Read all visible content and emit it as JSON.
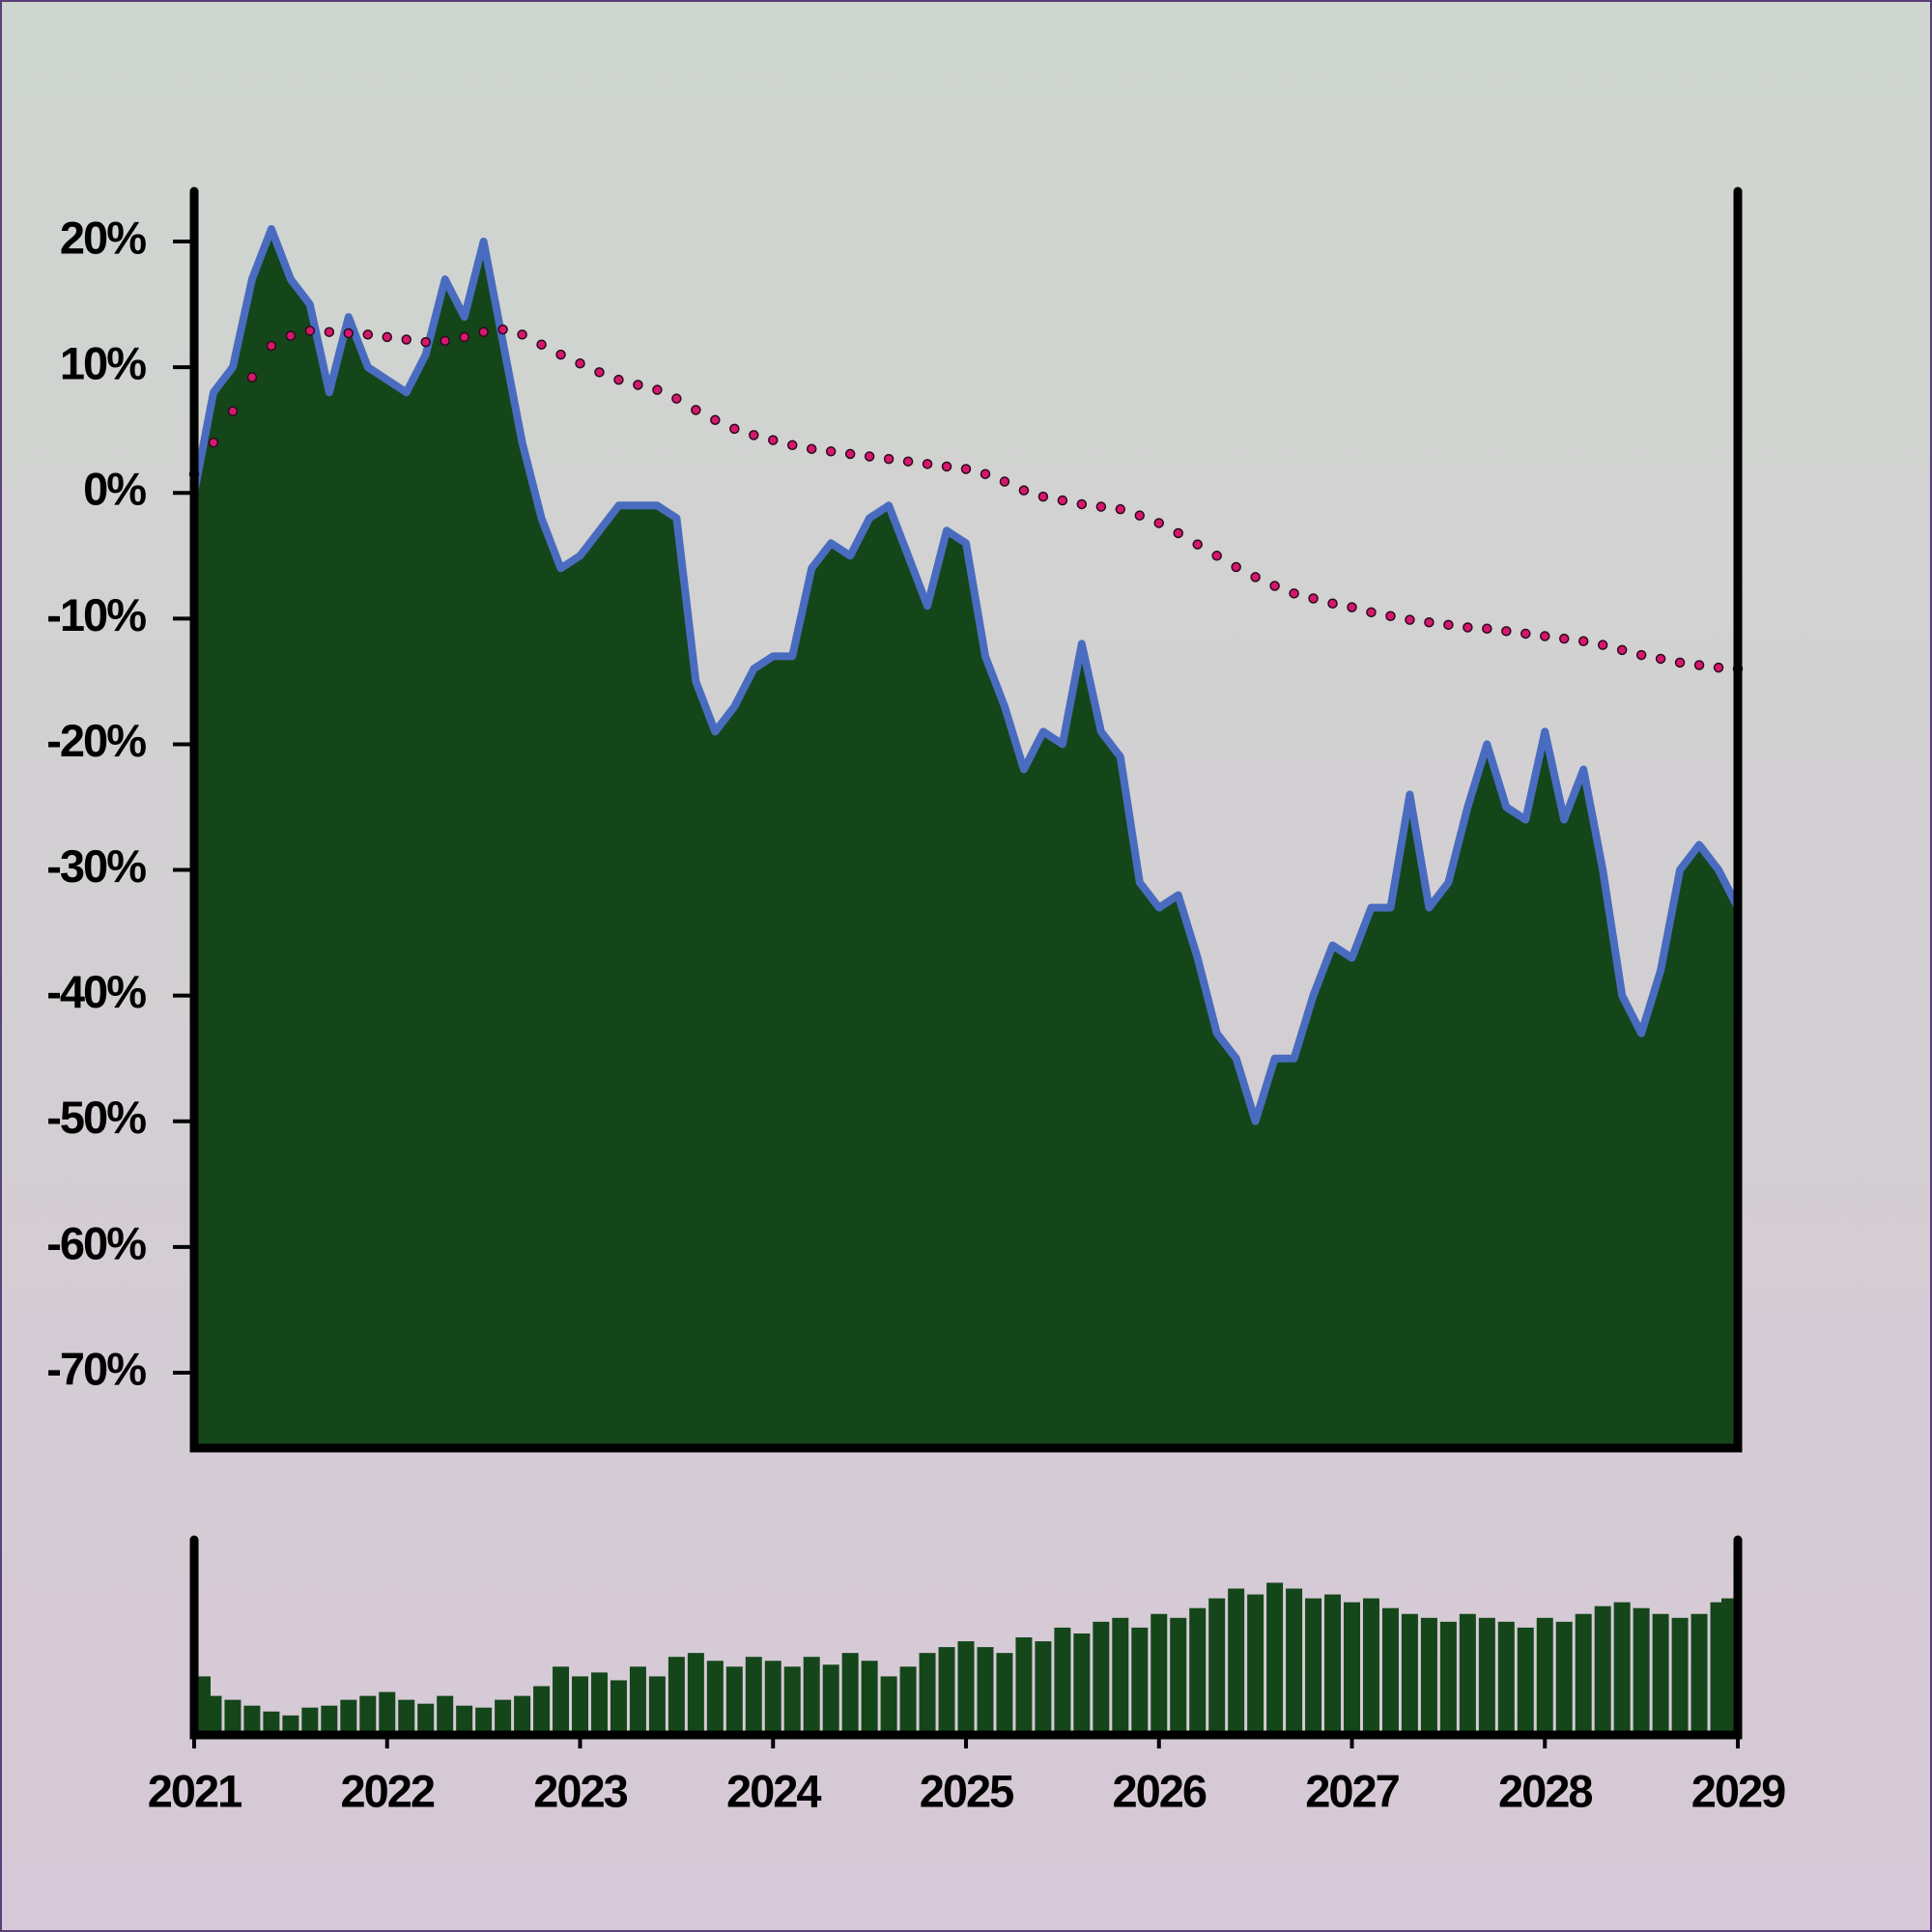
{
  "chart_data": [
    {
      "type": "area",
      "x": [
        2021.0,
        2021.1,
        2021.2,
        2021.3,
        2021.4,
        2021.5,
        2021.6,
        2021.7,
        2021.8,
        2021.9,
        2022.0,
        2022.1,
        2022.2,
        2022.3,
        2022.4,
        2022.5,
        2022.6,
        2022.7,
        2022.8,
        2022.9,
        2023.0,
        2023.1,
        2023.2,
        2023.3,
        2023.4,
        2023.5,
        2023.6,
        2023.7,
        2023.8,
        2023.9,
        2024.0,
        2024.1,
        2024.2,
        2024.3,
        2024.4,
        2024.5,
        2024.6,
        2024.7,
        2024.8,
        2024.9,
        2025.0,
        2025.1,
        2025.2,
        2025.3,
        2025.4,
        2025.5,
        2025.6,
        2025.7,
        2025.8,
        2025.9,
        2026.0,
        2026.1,
        2026.2,
        2026.3,
        2026.4,
        2026.5,
        2026.6,
        2026.7,
        2026.8,
        2026.9,
        2027.0,
        2027.1,
        2027.2,
        2027.3,
        2027.4,
        2027.5,
        2027.6,
        2027.7,
        2027.8,
        2027.9,
        2028.0,
        2028.1,
        2028.2,
        2028.3,
        2028.4,
        2028.5,
        2028.6,
        2028.7,
        2028.8,
        2028.9,
        2029.0
      ],
      "series": [
        {
          "color": "#4a6cc0",
          "fill": "#14461a",
          "values": [
            0,
            8,
            10,
            17,
            21,
            17,
            15,
            8,
            14,
            10,
            9,
            8,
            11,
            17,
            14,
            20,
            12,
            4,
            -2,
            -6,
            -5,
            -3,
            -1,
            -1,
            -1,
            -2,
            -15,
            -19,
            -17,
            -14,
            -13,
            -13,
            -6,
            -4,
            -5,
            -2,
            -1,
            -5,
            -9,
            -3,
            -4,
            -13,
            -17,
            -22,
            -19,
            -20,
            -12,
            -19,
            -21,
            -31,
            -33,
            -32,
            -37,
            -43,
            -45,
            -50,
            -45,
            -45,
            -40,
            -36,
            -37,
            -33,
            -33,
            -24,
            -33,
            -31,
            -25,
            -20,
            -25,
            -26,
            -19,
            -26,
            -22,
            -30,
            -40,
            -43,
            -38,
            -30,
            -28,
            -30,
            -33
          ]
        },
        {
          "color": "#d6176e",
          "style": "dotted",
          "values": [
            1.5,
            4,
            6.5,
            9.2,
            11.7,
            12.5,
            12.9,
            12.8,
            12.7,
            12.6,
            12.4,
            12.2,
            12.0,
            12.1,
            12.4,
            12.8,
            13.0,
            12.6,
            11.8,
            11.0,
            10.3,
            9.6,
            9.0,
            8.6,
            8.2,
            7.5,
            6.6,
            5.8,
            5.1,
            4.6,
            4.2,
            3.8,
            3.5,
            3.3,
            3.1,
            2.9,
            2.7,
            2.5,
            2.3,
            2.1,
            1.9,
            1.5,
            0.9,
            0.2,
            -0.3,
            -0.6,
            -0.9,
            -1.1,
            -1.3,
            -1.8,
            -2.4,
            -3.2,
            -4.1,
            -5.0,
            -5.9,
            -6.7,
            -7.4,
            -8.0,
            -8.4,
            -8.8,
            -9.1,
            -9.5,
            -9.8,
            -10.1,
            -10.3,
            -10.5,
            -10.7,
            -10.8,
            -11.0,
            -11.2,
            -11.4,
            -11.6,
            -11.8,
            -12.1,
            -12.5,
            -12.9,
            -13.2,
            -13.5,
            -13.7,
            -13.9,
            -14.0
          ]
        }
      ],
      "xlim": [
        2021,
        2029
      ],
      "ylim": [
        -76,
        24
      ],
      "yticks": [
        {
          "value": 20,
          "label": "20%"
        },
        {
          "value": 10,
          "label": "10%"
        },
        {
          "value": 0,
          "label": "0%"
        },
        {
          "value": -10,
          "label": "-10%"
        },
        {
          "value": -20,
          "label": "-20%"
        },
        {
          "value": -30,
          "label": "-30%"
        },
        {
          "value": -40,
          "label": "-40%"
        },
        {
          "value": -50,
          "label": "-50%"
        },
        {
          "value": -60,
          "label": "-60%"
        },
        {
          "value": -70,
          "label": "-70%"
        }
      ]
    },
    {
      "type": "bar",
      "x": [
        2021.0,
        2021.1,
        2021.2,
        2021.3,
        2021.4,
        2021.5,
        2021.6,
        2021.7,
        2021.8,
        2021.9,
        2022.0,
        2022.1,
        2022.2,
        2022.3,
        2022.4,
        2022.5,
        2022.6,
        2022.7,
        2022.8,
        2022.9,
        2023.0,
        2023.1,
        2023.2,
        2023.3,
        2023.4,
        2023.5,
        2023.6,
        2023.7,
        2023.8,
        2023.9,
        2024.0,
        2024.1,
        2024.2,
        2024.3,
        2024.4,
        2024.5,
        2024.6,
        2024.7,
        2024.8,
        2024.9,
        2025.0,
        2025.1,
        2025.2,
        2025.3,
        2025.4,
        2025.5,
        2025.6,
        2025.7,
        2025.8,
        2025.9,
        2026.0,
        2026.1,
        2026.2,
        2026.3,
        2026.4,
        2026.5,
        2026.6,
        2026.7,
        2026.8,
        2026.9,
        2027.0,
        2027.1,
        2027.2,
        2027.3,
        2027.4,
        2027.5,
        2027.6,
        2027.7,
        2027.8,
        2027.9,
        2028.0,
        2028.1,
        2028.2,
        2028.3,
        2028.4,
        2028.5,
        2028.6,
        2028.7,
        2028.8,
        2028.9,
        2029.0
      ],
      "values": [
        30,
        20,
        18,
        15,
        12,
        10,
        14,
        15,
        18,
        20,
        22,
        18,
        16,
        20,
        15,
        14,
        18,
        20,
        25,
        35,
        30,
        32,
        28,
        35,
        30,
        40,
        42,
        38,
        35,
        40,
        38,
        35,
        40,
        36,
        42,
        38,
        30,
        35,
        42,
        45,
        48,
        45,
        42,
        50,
        48,
        55,
        52,
        58,
        60,
        55,
        62,
        60,
        65,
        70,
        75,
        72,
        78,
        75,
        70,
        72,
        68,
        70,
        65,
        62,
        60,
        58,
        62,
        60,
        58,
        55,
        60,
        58,
        62,
        66,
        68,
        65,
        62,
        60,
        62,
        68,
        70
      ],
      "color": "#14461a",
      "xlim": [
        2021,
        2029
      ],
      "ylim": [
        0,
        100
      ],
      "xticks": [
        2021,
        2022,
        2023,
        2024,
        2025,
        2026,
        2027,
        2028,
        2029
      ]
    }
  ]
}
